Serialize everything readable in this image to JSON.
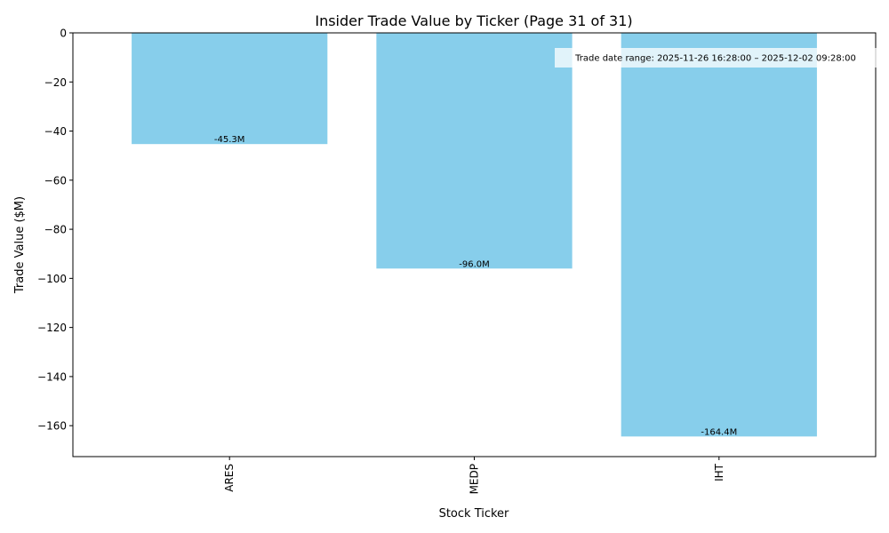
{
  "chart_data": {
    "type": "bar",
    "title": "Insider Trade Value by Ticker (Page 31 of 31)",
    "xlabel": "Stock Ticker",
    "ylabel": "Trade Value ($M)",
    "categories": [
      "ARES",
      "MEDP",
      "IHT"
    ],
    "values": [
      -45.3,
      -96.0,
      -164.4
    ],
    "data_labels": [
      "-45.3M",
      "-96.0M",
      "-164.4M"
    ],
    "ylim": [
      -172.6,
      0
    ],
    "yticks": [
      0,
      -20,
      -40,
      -60,
      -80,
      -100,
      -120,
      -140,
      -160
    ],
    "ytick_labels": [
      "0",
      "−20",
      "−40",
      "−60",
      "−80",
      "−100",
      "−120",
      "−140",
      "−160"
    ],
    "annotation": "Trade date range: 2025-11-26 16:28:00 – 2025-12-02 09:28:00",
    "annotation_position": "top-right",
    "grid": false,
    "bar_color": "#87CEEB"
  }
}
